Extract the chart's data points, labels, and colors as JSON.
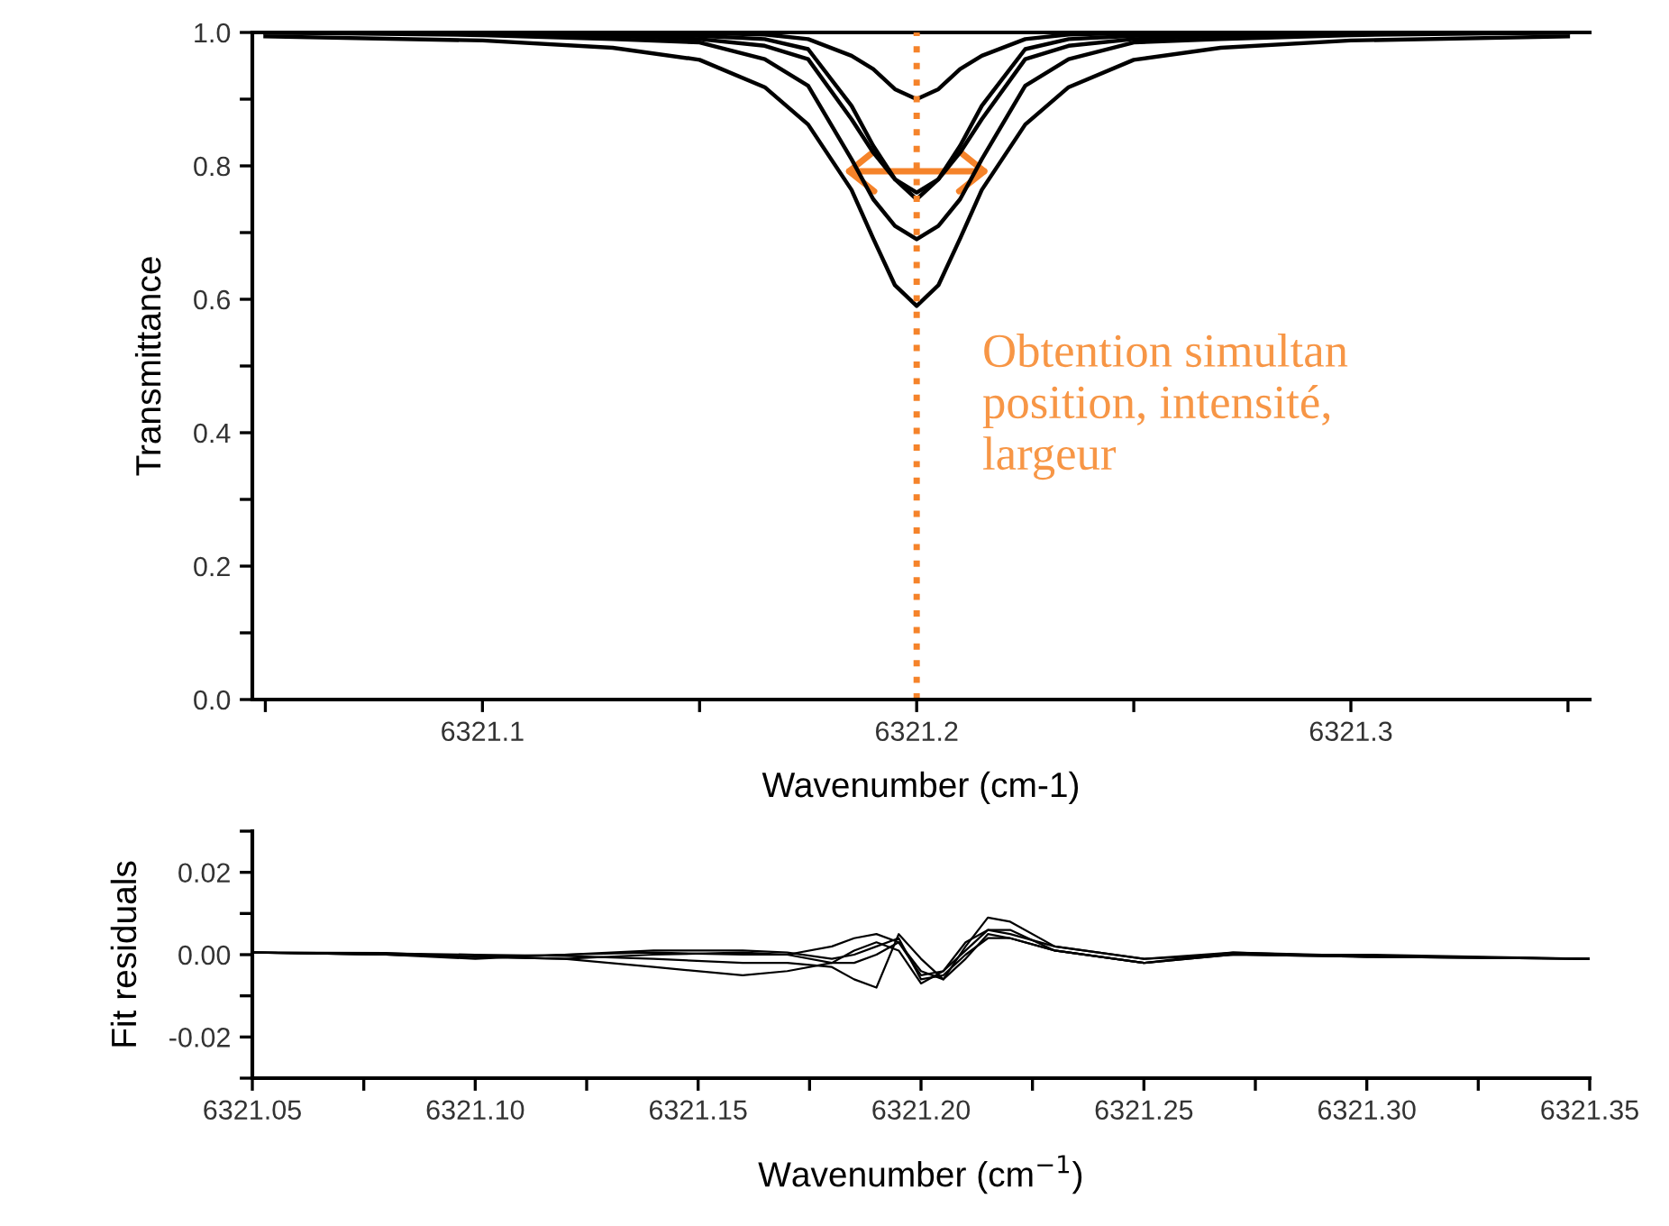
{
  "chart_data": [
    {
      "type": "line",
      "xlabel": "Wavenumber (cm-1)",
      "ylabel": "Transmittance",
      "x": [
        6321.05,
        6321.1,
        6321.13,
        6321.15,
        6321.165,
        6321.175,
        6321.185,
        6321.19,
        6321.195,
        6321.2,
        6321.205,
        6321.21,
        6321.215,
        6321.225,
        6321.235,
        6321.25,
        6321.27,
        6321.3,
        6321.35
      ],
      "series": [
        {
          "color": "#000000",
          "values": [
            1.0,
            1.0,
            1.0,
            0.999,
            0.997,
            0.99,
            0.965,
            0.945,
            0.915,
            0.9,
            0.915,
            0.945,
            0.965,
            0.99,
            0.997,
            0.999,
            1.0,
            1.0,
            1.0
          ]
        },
        {
          "color": "#000000",
          "values": [
            1.0,
            0.998,
            0.995,
            0.99,
            0.98,
            0.96,
            0.87,
            0.82,
            0.78,
            0.76,
            0.78,
            0.82,
            0.87,
            0.96,
            0.98,
            0.99,
            0.995,
            0.998,
            1.0
          ]
        },
        {
          "color": "#000000",
          "values": [
            1.0,
            1.0,
            0.998,
            0.995,
            0.99,
            0.975,
            0.89,
            0.83,
            0.78,
            0.75,
            0.78,
            0.83,
            0.89,
            0.975,
            0.99,
            0.995,
            0.998,
            1.0,
            1.0
          ]
        },
        {
          "color": "#000000",
          "values": [
            1.0,
            0.996,
            0.99,
            0.985,
            0.96,
            0.92,
            0.81,
            0.75,
            0.71,
            0.69,
            0.71,
            0.75,
            0.81,
            0.92,
            0.96,
            0.985,
            0.99,
            0.996,
            1.0
          ]
        },
        {
          "color": "#000000",
          "values": [
            0.994,
            0.988,
            0.977,
            0.959,
            0.918,
            0.862,
            0.764,
            0.691,
            0.621,
            0.59,
            0.621,
            0.691,
            0.764,
            0.862,
            0.918,
            0.959,
            0.977,
            0.988,
            0.994
          ]
        }
      ],
      "xlim": [
        6321.047,
        6321.355
      ],
      "xticks": [
        {
          "value": 6321.05,
          "label": null
        },
        6321.1,
        {
          "value": 6321.15,
          "label": null
        },
        6321.2,
        {
          "value": 6321.25,
          "label": null
        },
        6321.3,
        {
          "value": 6321.35,
          "label": null
        }
      ],
      "ylim": [
        0,
        1
      ],
      "yticks": [
        {
          "value": 0,
          "label": "0.0"
        },
        {
          "value": 0.1,
          "label": null
        },
        {
          "value": 0.2,
          "label": "0.2"
        },
        {
          "value": 0.3,
          "label": null
        },
        {
          "value": 0.4,
          "label": "0.4"
        },
        {
          "value": 0.5,
          "label": null
        },
        {
          "value": 0.6,
          "label": "0.6"
        },
        {
          "value": 0.7,
          "label": null
        },
        {
          "value": 0.8,
          "label": "0.8"
        },
        {
          "value": 0.9,
          "label": null
        },
        {
          "value": 1.0,
          "label": "1.0"
        }
      ],
      "ref_lines": [
        {
          "axis": "x",
          "value": 6321.2,
          "color": "#f5832a",
          "line_style": "dotted"
        }
      ],
      "annotations": [
        "Obtention simultan\nposition, intensité,\nlargeur"
      ],
      "marker": "none",
      "line_style": "solid"
    },
    {
      "type": "line",
      "xlabel": "Wavenumber (cm$^{−1}$)",
      "ylabel": "Fit residuals",
      "x": [
        6321.05,
        6321.08,
        6321.1,
        6321.12,
        6321.14,
        6321.16,
        6321.17,
        6321.18,
        6321.185,
        6321.19,
        6321.195,
        6321.2,
        6321.205,
        6321.21,
        6321.215,
        6321.22,
        6321.23,
        6321.25,
        6321.27,
        6321.3,
        6321.35
      ],
      "series": [
        {
          "color": "#000000",
          "values": [
            0.0005,
            0.0004,
            -0.0005,
            -0.001,
            0,
            0.0005,
            0,
            0.002,
            0.004,
            0.005,
            0.003,
            -0.004,
            -0.006,
            0.002,
            0.009,
            0.008,
            0.002,
            -0.001,
            0,
            -0.0005,
            -0.001
          ]
        },
        {
          "color": "#000000",
          "values": [
            0.0005,
            0.0003,
            0,
            -0.0003,
            -0.001,
            -0.002,
            -0.002,
            -0.003,
            -0.006,
            -0.008,
            0.005,
            -0.001,
            -0.006,
            -0.001,
            0.005,
            0.004,
            0.001,
            -0.002,
            0.0005,
            -0.0003,
            -0.001
          ]
        },
        {
          "color": "#000000",
          "values": [
            0.0005,
            0,
            -0.0005,
            -0.001,
            -0.003,
            -0.005,
            -0.004,
            -0.002,
            0.001,
            0.003,
            0.001,
            -0.007,
            -0.004,
            0.003,
            0.006,
            0.005,
            0.002,
            -0.001,
            0.0005,
            -0.0005,
            -0.001
          ]
        },
        {
          "color": "#000000",
          "values": [
            0.0005,
            0,
            -0.001,
            0,
            0.001,
            0.001,
            0.0005,
            -0.001,
            0,
            0.002,
            0.004,
            -0.006,
            -0.005,
            0,
            0.004,
            0.004,
            0.001,
            -0.002,
            0,
            0,
            -0.001
          ]
        },
        {
          "color": "#000000",
          "values": [
            0.0005,
            0,
            -0.0005,
            0,
            0.0005,
            0,
            0,
            -0.002,
            -0.002,
            0,
            0.003,
            -0.005,
            -0.004,
            0.001,
            0.006,
            0.006,
            0.001,
            -0.002,
            0,
            -0.0005,
            -0.001
          ]
        }
      ],
      "xlim": [
        6321.05,
        6321.35
      ],
      "xticks": [
        {
          "value": 6321.05,
          "label": "6321.05"
        },
        {
          "value": 6321.075,
          "label": null
        },
        {
          "value": 6321.1,
          "label": "6321.10"
        },
        {
          "value": 6321.125,
          "label": null
        },
        {
          "value": 6321.15,
          "label": "6321.15"
        },
        {
          "value": 6321.175,
          "label": null
        },
        {
          "value": 6321.2,
          "label": "6321.20"
        },
        {
          "value": 6321.225,
          "label": null
        },
        {
          "value": 6321.25,
          "label": "6321.25"
        },
        {
          "value": 6321.275,
          "label": null
        },
        {
          "value": 6321.3,
          "label": "6321.30"
        },
        {
          "value": 6321.325,
          "label": null
        },
        {
          "value": 6321.35,
          "label": "6321.35"
        }
      ],
      "ylim": [
        -0.03,
        0.03
      ],
      "yticks": [
        {
          "value": -0.03,
          "label": null
        },
        {
          "value": -0.02,
          "label": "-0.02"
        },
        {
          "value": -0.01,
          "label": null
        },
        {
          "value": 0,
          "label": "0.00"
        },
        {
          "value": 0.01,
          "label": null
        },
        {
          "value": 0.02,
          "label": "0.02"
        },
        {
          "value": 0.03,
          "label": null
        }
      ],
      "marker": "none",
      "line_style": "solid"
    }
  ]
}
